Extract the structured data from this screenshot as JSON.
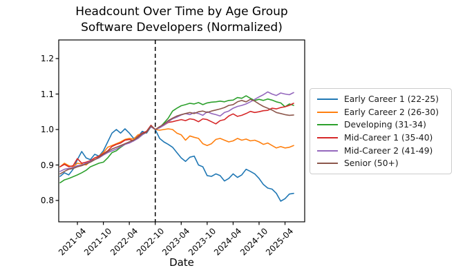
{
  "title_line1": "Headcount Over Time by Age Group",
  "title_line2": "Software Developers (Normalized)",
  "chart_data": {
    "type": "line",
    "title": "Headcount Over Time by Age Group — Software Developers (Normalized)",
    "xlabel": "Date",
    "ylabel": "",
    "grid": false,
    "legend_position": "right of axes",
    "ylim": [
      0.74,
      1.25
    ],
    "y_ticks": [
      "0.8",
      "0.9",
      "1.0",
      "1.1",
      "1.2"
    ],
    "x_tick_labels": [
      "2021-04",
      "2021-10",
      "2022-04",
      "2022-10",
      "2023-04",
      "2023-10",
      "2024-04",
      "2024-10",
      "2025-04"
    ],
    "vline": {
      "x": "2022-10",
      "style": "dashed",
      "color": "#000000",
      "note": "normalization point, all series = 1.0"
    },
    "x": [
      "2020-12",
      "2021-01",
      "2021-02",
      "2021-03",
      "2021-04",
      "2021-05",
      "2021-06",
      "2021-07",
      "2021-08",
      "2021-09",
      "2021-10",
      "2021-11",
      "2021-12",
      "2022-01",
      "2022-02",
      "2022-03",
      "2022-04",
      "2022-05",
      "2022-06",
      "2022-07",
      "2022-08",
      "2022-09",
      "2022-10",
      "2022-11",
      "2022-12",
      "2023-01",
      "2023-02",
      "2023-03",
      "2023-04",
      "2023-05",
      "2023-06",
      "2023-07",
      "2023-08",
      "2023-09",
      "2023-10",
      "2023-11",
      "2023-12",
      "2024-01",
      "2024-02",
      "2024-03",
      "2024-04",
      "2024-05",
      "2024-06",
      "2024-07",
      "2024-08",
      "2024-09",
      "2024-10",
      "2024-11",
      "2024-12",
      "2025-01",
      "2025-02",
      "2025-03",
      "2025-04",
      "2025-05",
      "2025-06"
    ],
    "series": [
      {
        "name": "Early Career 1 (22-25)",
        "color": "#1f77b4",
        "values": [
          0.868,
          0.878,
          0.872,
          0.888,
          0.915,
          0.938,
          0.92,
          0.915,
          0.93,
          0.925,
          0.94,
          0.965,
          0.99,
          1.0,
          0.99,
          1.002,
          0.99,
          0.975,
          0.98,
          0.995,
          0.99,
          1.008,
          1.0,
          0.975,
          0.965,
          0.958,
          0.95,
          0.935,
          0.92,
          0.91,
          0.922,
          0.925,
          0.9,
          0.895,
          0.87,
          0.868,
          0.875,
          0.87,
          0.855,
          0.862,
          0.875,
          0.865,
          0.872,
          0.888,
          0.882,
          0.875,
          0.862,
          0.845,
          0.835,
          0.832,
          0.82,
          0.798,
          0.805,
          0.818,
          0.82
        ]
      },
      {
        "name": "Early Career 2 (26-30)",
        "color": "#ff7f0e",
        "values": [
          0.895,
          0.905,
          0.898,
          0.895,
          0.905,
          0.903,
          0.9,
          0.91,
          0.92,
          0.925,
          0.935,
          0.95,
          0.955,
          0.96,
          0.965,
          0.972,
          0.975,
          0.973,
          0.985,
          0.988,
          0.995,
          1.01,
          1.0,
          0.998,
          1.0,
          1.002,
          1.0,
          0.99,
          0.985,
          0.97,
          0.982,
          0.978,
          0.975,
          0.96,
          0.955,
          0.96,
          0.972,
          0.975,
          0.97,
          0.965,
          0.968,
          0.975,
          0.97,
          0.973,
          0.968,
          0.97,
          0.965,
          0.958,
          0.962,
          0.955,
          0.948,
          0.952,
          0.948,
          0.95,
          0.955
        ]
      },
      {
        "name": "Developing (31-34)",
        "color": "#2ca02c",
        "values": [
          0.85,
          0.858,
          0.862,
          0.867,
          0.872,
          0.878,
          0.885,
          0.895,
          0.9,
          0.905,
          0.908,
          0.92,
          0.935,
          0.94,
          0.95,
          0.958,
          0.965,
          0.97,
          0.975,
          0.985,
          0.995,
          1.01,
          1.0,
          1.005,
          1.018,
          1.032,
          1.052,
          1.06,
          1.067,
          1.07,
          1.074,
          1.072,
          1.076,
          1.07,
          1.075,
          1.077,
          1.078,
          1.08,
          1.078,
          1.082,
          1.083,
          1.09,
          1.088,
          1.095,
          1.088,
          1.082,
          1.085,
          1.082,
          1.086,
          1.083,
          1.078,
          1.075,
          1.064,
          1.072,
          1.068
        ]
      },
      {
        "name": "Mid-Career 1 (35-40)",
        "color": "#d62728",
        "values": [
          0.895,
          0.902,
          0.895,
          0.898,
          0.918,
          0.905,
          0.908,
          0.912,
          0.92,
          0.925,
          0.932,
          0.94,
          0.952,
          0.958,
          0.962,
          0.97,
          0.972,
          0.968,
          0.98,
          0.99,
          0.995,
          1.012,
          1.0,
          1.005,
          1.012,
          1.02,
          1.022,
          1.025,
          1.028,
          1.025,
          1.03,
          1.028,
          1.022,
          1.03,
          1.028,
          1.022,
          1.016,
          1.025,
          1.028,
          1.038,
          1.044,
          1.037,
          1.04,
          1.045,
          1.051,
          1.048,
          1.05,
          1.053,
          1.054,
          1.06,
          1.058,
          1.062,
          1.064,
          1.068,
          1.074
        ]
      },
      {
        "name": "Mid-Career 2 (41-49)",
        "color": "#9467bd",
        "values": [
          0.882,
          0.888,
          0.89,
          0.893,
          0.898,
          0.9,
          0.905,
          0.91,
          0.915,
          0.92,
          0.928,
          0.935,
          0.94,
          0.945,
          0.952,
          0.958,
          0.962,
          0.968,
          0.975,
          0.985,
          0.992,
          1.008,
          1.0,
          1.005,
          1.012,
          1.022,
          1.03,
          1.035,
          1.041,
          1.045,
          1.042,
          1.048,
          1.045,
          1.04,
          1.05,
          1.045,
          1.042,
          1.038,
          1.048,
          1.052,
          1.06,
          1.065,
          1.068,
          1.072,
          1.078,
          1.085,
          1.092,
          1.098,
          1.106,
          1.1,
          1.096,
          1.103,
          1.1,
          1.098,
          1.104
        ]
      },
      {
        "name": "Senior (50+)",
        "color": "#8c564b",
        "values": [
          0.875,
          0.882,
          0.888,
          0.89,
          0.895,
          0.898,
          0.903,
          0.908,
          0.915,
          0.922,
          0.93,
          0.938,
          0.945,
          0.95,
          0.955,
          0.96,
          0.965,
          0.97,
          0.978,
          0.988,
          0.992,
          1.01,
          1.0,
          1.008,
          1.015,
          1.025,
          1.032,
          1.038,
          1.042,
          1.045,
          1.048,
          1.045,
          1.05,
          1.052,
          1.048,
          1.052,
          1.055,
          1.058,
          1.062,
          1.068,
          1.07,
          1.078,
          1.082,
          1.078,
          1.085,
          1.08,
          1.072,
          1.065,
          1.06,
          1.055,
          1.048,
          1.045,
          1.042,
          1.04,
          1.041
        ]
      }
    ]
  }
}
